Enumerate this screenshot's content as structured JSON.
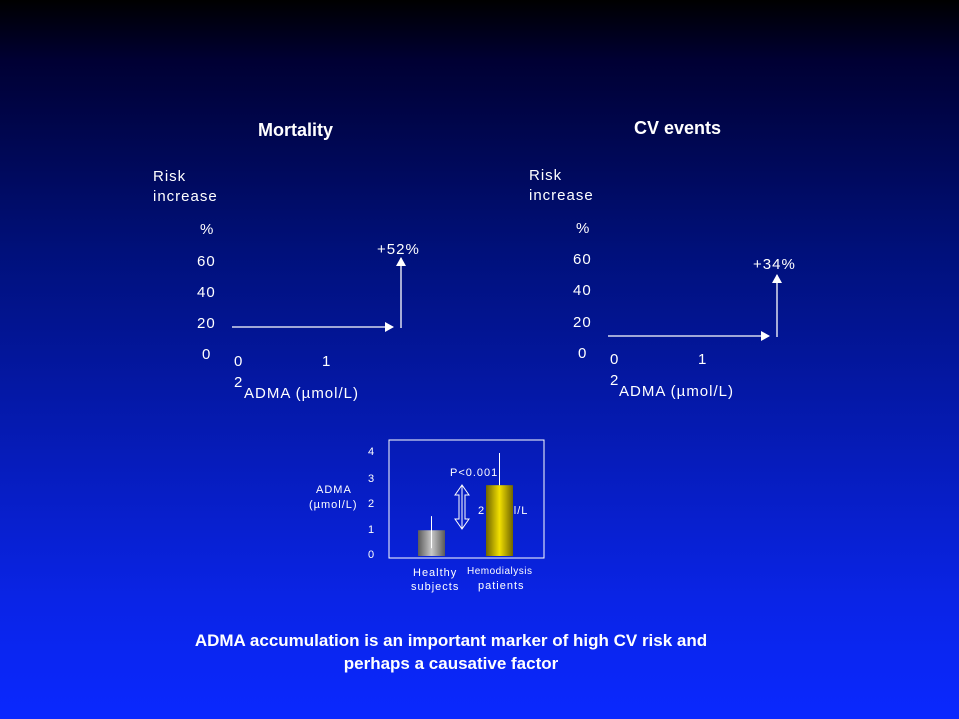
{
  "chart_data": [
    {
      "type": "line",
      "title": "Mortality",
      "ylabel": "Risk increase",
      "yunit": "%",
      "yticks": [
        "60",
        "40",
        "20",
        "0"
      ],
      "xticks": [
        "0",
        "1",
        "2"
      ],
      "xlabel": "ADMA (µmol/L)",
      "annotation": "+52%"
    },
    {
      "type": "line",
      "title": "CV events",
      "ylabel": "Risk increase",
      "yunit": "%",
      "yticks": [
        "60",
        "40",
        "20",
        "0"
      ],
      "xticks": [
        "0",
        "1",
        "2"
      ],
      "xlabel": "ADMA (µmol/L)",
      "annotation": "+34%"
    },
    {
      "type": "bar",
      "categories": [
        "Healthy subjects",
        "Hemodialysis patients"
      ],
      "category_lines": [
        [
          "Healthy",
          "subjects"
        ],
        [
          "Hemodialysis",
          "patients"
        ]
      ],
      "values": [
        1.0,
        2.75
      ],
      "error_upper": [
        1.55,
        4.0
      ],
      "ylabel_lines": [
        "ADMA",
        "(µmol/L)"
      ],
      "yticks": [
        "4",
        "3",
        "2",
        "1",
        "0"
      ],
      "ylim": [
        0,
        4
      ],
      "pvalue": "P<0.001",
      "diff_label": "2 µmol/L",
      "colors": [
        "#9a9a9a",
        "#e6d200"
      ]
    }
  ],
  "conclusion": {
    "line1": "ADMA  accumulation is an important marker of high CV risk and",
    "line2": "perhaps a causative factor"
  }
}
